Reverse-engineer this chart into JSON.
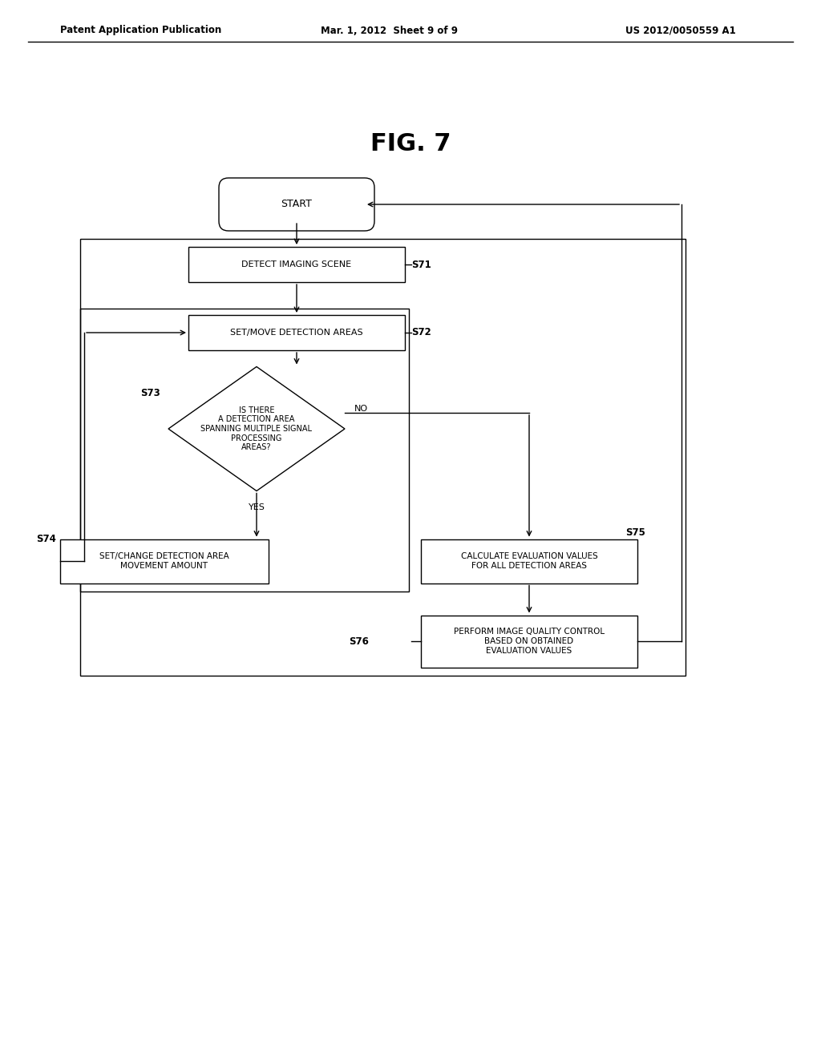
{
  "title": "FIG. 7",
  "header_left": "Patent Application Publication",
  "header_mid": "Mar. 1, 2012  Sheet 9 of 9",
  "header_right": "US 2012/0050559 A1",
  "bg_color": "#ffffff",
  "figsize": [
    10.24,
    13.2
  ],
  "dpi": 100,
  "start_label": "START",
  "s71_label": "DETECT IMAGING SCENE",
  "s72_label": "SET/MOVE DETECTION AREAS",
  "s73_label": "IS THERE\nA DETECTION AREA\nSPANNING MULTIPLE SIGNAL\nPROCESSING\nAREAS?",
  "s74_label": "SET/CHANGE DETECTION AREA\nMOVEMENT AMOUNT",
  "s75_label": "CALCULATE EVALUATION VALUES\nFOR ALL DETECTION AREAS",
  "s76_label": "PERFORM IMAGE QUALITY CONTROL\nBASED ON OBTAINED\nEVALUATION VALUES",
  "s71_tag": "S71",
  "s72_tag": "S72",
  "s73_tag": "S73",
  "s74_tag": "S74",
  "s75_tag": "S75",
  "s76_tag": "S76",
  "yes_text": "YES",
  "no_text": "NO"
}
